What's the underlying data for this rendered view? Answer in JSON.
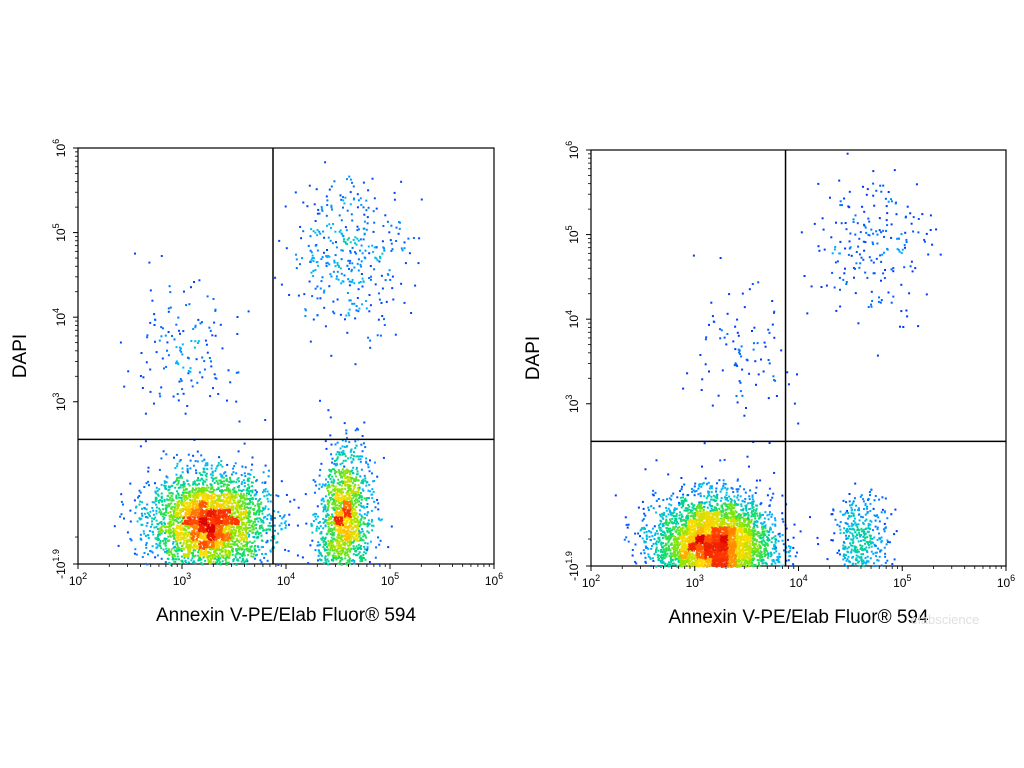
{
  "chart_data": [
    {
      "type": "scatter",
      "title": "",
      "xlabel": "Annexin V-PE/Elab Fluor® 594",
      "ylabel": "DAPI",
      "x_scale": "log",
      "y_scale": "biexponential",
      "xlim": [
        100,
        1000000
      ],
      "ylim": [
        -79.4,
        1000000
      ],
      "x_ticks": [
        {
          "value": 100,
          "base": "10",
          "exp": "2"
        },
        {
          "value": 1000,
          "base": "10",
          "exp": "3"
        },
        {
          "value": 10000,
          "base": "10",
          "exp": "4"
        },
        {
          "value": 100000,
          "base": "10",
          "exp": "5"
        },
        {
          "value": 1000000,
          "base": "10",
          "exp": "6"
        }
      ],
      "y_ticks": [
        {
          "value": -79.4,
          "base": "-10",
          "exp": "1.9"
        },
        {
          "value": 1000,
          "base": "10",
          "exp": "3"
        },
        {
          "value": 10000,
          "base": "10",
          "exp": "4"
        },
        {
          "value": 100000,
          "base": "10",
          "exp": "5"
        },
        {
          "value": 1000000,
          "base": "10",
          "exp": "6"
        }
      ],
      "quadrant_gate": {
        "x": 7500,
        "y": 750
      },
      "populations": [
        {
          "name_hint": "annexin-neg dapi-neg",
          "center": [
            1800,
            200
          ],
          "weight": 0.62
        },
        {
          "name_hint": "annexin-pos dapi-neg",
          "center": [
            35000,
            250
          ],
          "weight": 0.28
        },
        {
          "name_hint": "annexin-pos dapi-pos",
          "center": [
            40000,
            60000
          ],
          "weight": 0.07
        },
        {
          "name_hint": "annexin-neg dapi-pos",
          "center": [
            900,
            3000
          ],
          "weight": 0.03
        }
      ],
      "grid": false,
      "legend": "none"
    },
    {
      "type": "scatter",
      "title": "",
      "xlabel": "Annexin V-PE/Elab Fluor® 594",
      "ylabel": "DAPI",
      "x_scale": "log",
      "y_scale": "biexponential",
      "xlim": [
        100,
        1000000
      ],
      "ylim": [
        -79.4,
        1000000
      ],
      "x_ticks": [
        {
          "value": 100,
          "base": "10",
          "exp": "2"
        },
        {
          "value": 1000,
          "base": "10",
          "exp": "3"
        },
        {
          "value": 10000,
          "base": "10",
          "exp": "4"
        },
        {
          "value": 100000,
          "base": "10",
          "exp": "5"
        },
        {
          "value": 1000000,
          "base": "10",
          "exp": "6"
        }
      ],
      "y_ticks": [
        {
          "value": -79.4,
          "base": "-10",
          "exp": "1.9"
        },
        {
          "value": 1000,
          "base": "10",
          "exp": "3"
        },
        {
          "value": 10000,
          "base": "10",
          "exp": "4"
        },
        {
          "value": 100000,
          "base": "10",
          "exp": "5"
        },
        {
          "value": 1000000,
          "base": "10",
          "exp": "6"
        }
      ],
      "quadrant_gate": {
        "x": 7500,
        "y": 750
      },
      "populations": [
        {
          "name_hint": "annexin-neg dapi-neg",
          "center": [
            1500,
            60
          ],
          "weight": 0.86
        },
        {
          "name_hint": "annexin-pos dapi-neg",
          "center": [
            40000,
            80
          ],
          "weight": 0.08
        },
        {
          "name_hint": "annexin-pos dapi-pos",
          "center": [
            50000,
            80000
          ],
          "weight": 0.04
        },
        {
          "name_hint": "annexin-neg dapi-pos",
          "center": [
            2500,
            3000
          ],
          "weight": 0.02
        }
      ],
      "grid": false,
      "legend": "none"
    }
  ],
  "watermark": "elabscience",
  "colors": {
    "axis": "#000000",
    "density_low": "#0000ff",
    "density_mid": "#00ff80",
    "density_high": "#ff0000"
  }
}
